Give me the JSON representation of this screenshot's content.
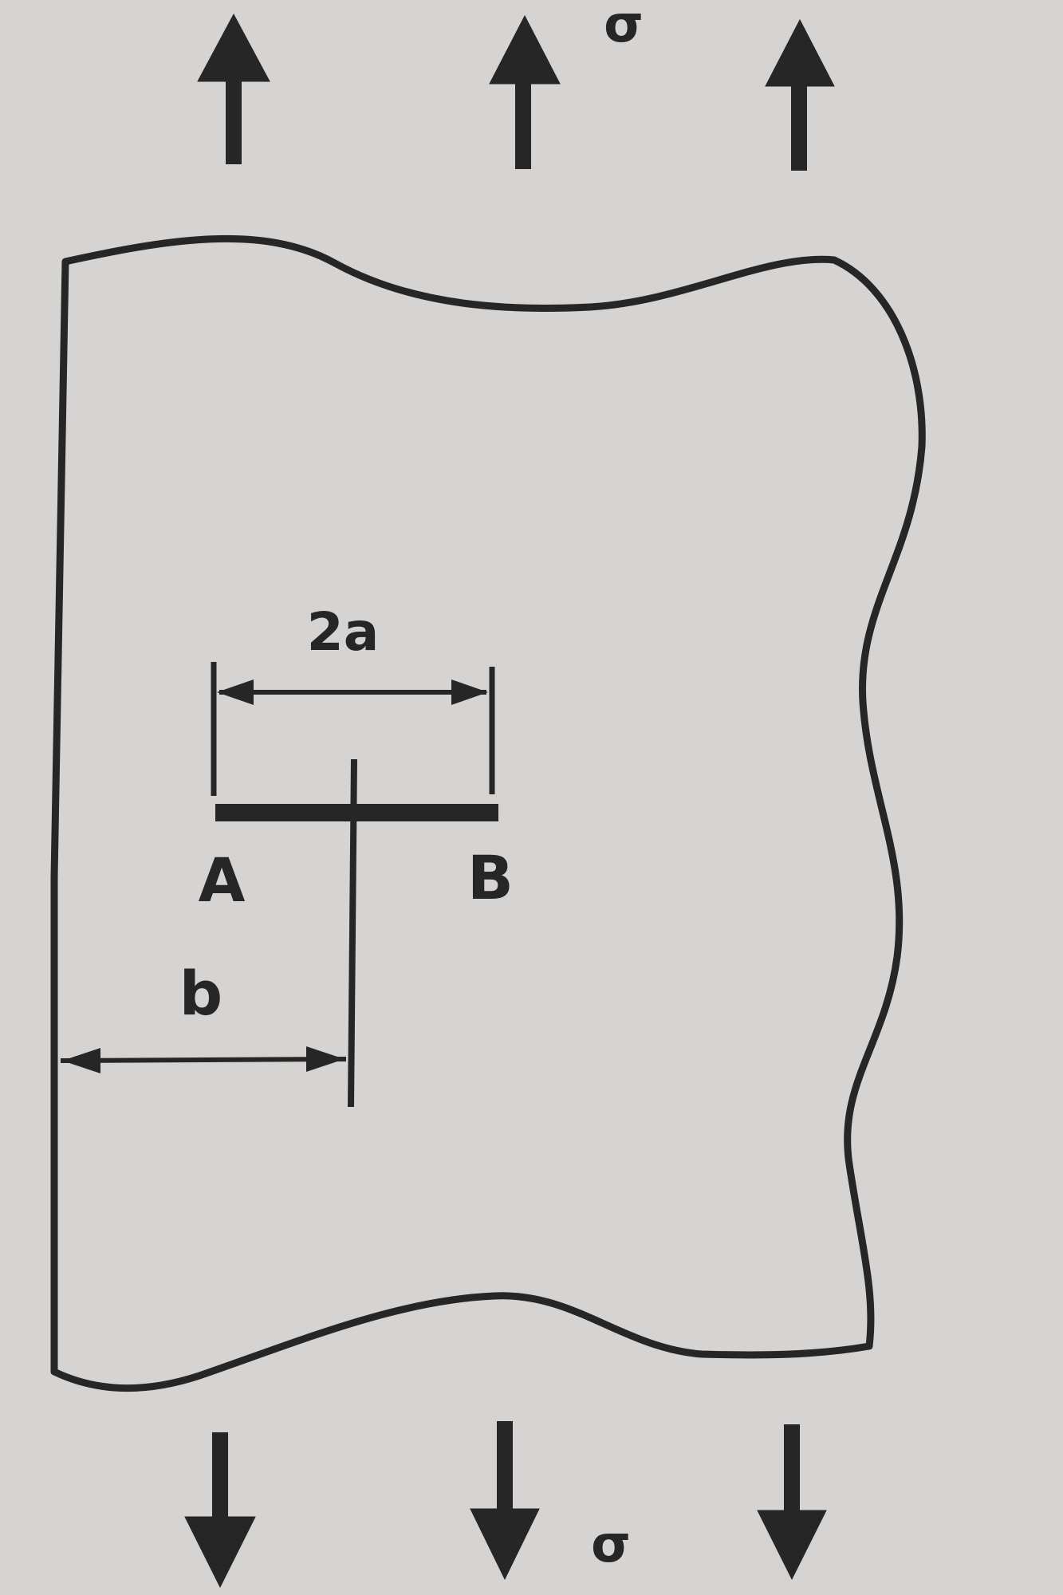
{
  "labels": {
    "sigma_top": "σ",
    "sigma_bottom": "σ",
    "crack_length": "2a",
    "crack_tip_left": "A",
    "crack_tip_right": "B",
    "edge_distance": "b"
  },
  "colors": {
    "paper": "#d6d4d3",
    "ink": "#262626"
  },
  "icons": {
    "load_arrow_up": "arrow-up-icon",
    "load_arrow_down": "arrow-down-icon"
  }
}
